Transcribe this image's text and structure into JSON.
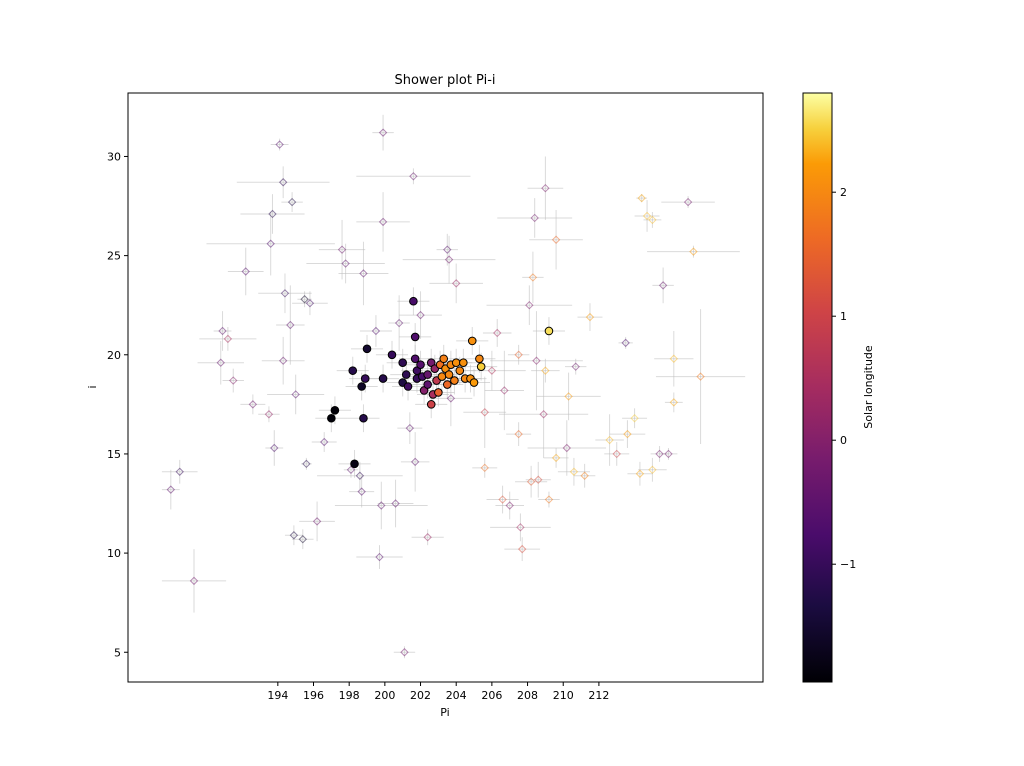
{
  "chart_data": {
    "type": "scatter",
    "title": "Shower plot Pi-i",
    "xlabel": "Pi",
    "ylabel": "i",
    "xlim": [
      185.6,
      221.2
    ],
    "ylim": [
      3.5,
      33.2
    ],
    "xticks": [
      194,
      196,
      198,
      200,
      202,
      204,
      206,
      208,
      210,
      212
    ],
    "yticks": [
      5,
      10,
      15,
      20,
      25,
      30
    ],
    "grid": false,
    "colorbar": {
      "label": "Solar longitude",
      "ticks": [
        -1,
        0,
        1,
        2
      ],
      "tick_labels": [
        "−1",
        "0",
        "1",
        "2"
      ],
      "range": [
        -1.95,
        2.8
      ],
      "colormap": "inferno"
    },
    "faint_series": {
      "name": "",
      "points": [
        {
          "x": 188.5,
          "y": 14.1,
          "s": -1.0,
          "ex": 1.0,
          "ey": 0.6
        },
        {
          "x": 188.0,
          "y": 13.2,
          "s": -0.5,
          "ex": 0.5,
          "ey": 1.0
        },
        {
          "x": 189.3,
          "y": 8.6,
          "s": -0.2,
          "ex": 1.8,
          "ey": 1.6
        },
        {
          "x": 190.9,
          "y": 21.2,
          "s": -0.5,
          "ex": 0.5,
          "ey": 1.0
        },
        {
          "x": 191.2,
          "y": 20.8,
          "s": 0.5,
          "ex": 1.6,
          "ey": 0.6
        },
        {
          "x": 190.8,
          "y": 19.6,
          "s": -0.4,
          "ex": 1.3,
          "ey": 1.1
        },
        {
          "x": 191.5,
          "y": 18.7,
          "s": 0.0,
          "ex": 0.6,
          "ey": 0.6
        },
        {
          "x": 192.2,
          "y": 24.2,
          "s": -0.6,
          "ex": 1.0,
          "ey": 1.2
        },
        {
          "x": 192.6,
          "y": 17.5,
          "s": -0.3,
          "ex": 0.7,
          "ey": 0.5
        },
        {
          "x": 193.5,
          "y": 17.0,
          "s": 0.2,
          "ex": 0.6,
          "ey": 0.4
        },
        {
          "x": 193.8,
          "y": 15.3,
          "s": -0.8,
          "ex": 0.5,
          "ey": 0.9
        },
        {
          "x": 193.6,
          "y": 25.6,
          "s": -0.7,
          "ex": 3.6,
          "ey": 1.6
        },
        {
          "x": 193.7,
          "y": 27.1,
          "s": -1.2,
          "ex": 1.8,
          "ey": 1.0
        },
        {
          "x": 194.1,
          "y": 30.6,
          "s": -0.6,
          "ex": 0.5,
          "ey": 0.3
        },
        {
          "x": 194.3,
          "y": 28.7,
          "s": -1.1,
          "ex": 2.6,
          "ey": 0.8
        },
        {
          "x": 194.4,
          "y": 23.1,
          "s": -1.0,
          "ex": 1.5,
          "ey": 1.0
        },
        {
          "x": 194.3,
          "y": 19.7,
          "s": -0.4,
          "ex": 1.2,
          "ey": 1.2
        },
        {
          "x": 194.7,
          "y": 21.5,
          "s": -0.5,
          "ex": 0.8,
          "ey": 2.0
        },
        {
          "x": 194.8,
          "y": 27.7,
          "s": -1.3,
          "ex": 0.6,
          "ey": 0.5
        },
        {
          "x": 195.0,
          "y": 18.0,
          "s": -0.6,
          "ex": 1.6,
          "ey": 1.0
        },
        {
          "x": 194.9,
          "y": 10.9,
          "s": -1.3,
          "ex": 0.5,
          "ey": 0.5
        },
        {
          "x": 195.4,
          "y": 10.7,
          "s": -1.5,
          "ex": 0.6,
          "ey": 0.5
        },
        {
          "x": 195.6,
          "y": 14.5,
          "s": -1.2,
          "ex": 0.3,
          "ey": 0.3
        },
        {
          "x": 195.5,
          "y": 22.8,
          "s": -1.6,
          "ex": 0.4,
          "ey": 0.4
        },
        {
          "x": 195.8,
          "y": 22.6,
          "s": -0.9,
          "ex": 1.0,
          "ey": 0.6
        },
        {
          "x": 196.2,
          "y": 11.6,
          "s": -0.3,
          "ex": 1.0,
          "ey": 1.0
        },
        {
          "x": 196.6,
          "y": 15.6,
          "s": -0.7,
          "ex": 0.7,
          "ey": 0.5
        },
        {
          "x": 197.6,
          "y": 25.3,
          "s": -0.3,
          "ex": 1.3,
          "ey": 1.5
        },
        {
          "x": 197.8,
          "y": 24.6,
          "s": -0.5,
          "ex": 2.2,
          "ey": 1.0
        },
        {
          "x": 198.1,
          "y": 14.2,
          "s": -0.5,
          "ex": 0.4,
          "ey": 0.4
        },
        {
          "x": 198.6,
          "y": 13.9,
          "s": -1.1,
          "ex": 2.4,
          "ey": 0.7
        },
        {
          "x": 198.7,
          "y": 13.1,
          "s": -0.6,
          "ex": 0.7,
          "ey": 0.8
        },
        {
          "x": 198.8,
          "y": 24.1,
          "s": -0.5,
          "ex": 1.4,
          "ey": 1.6
        },
        {
          "x": 199.5,
          "y": 21.2,
          "s": -0.7,
          "ex": 0.9,
          "ey": 0.8
        },
        {
          "x": 199.8,
          "y": 12.4,
          "s": -0.5,
          "ex": 2.6,
          "ey": 1.2
        },
        {
          "x": 199.7,
          "y": 9.8,
          "s": -0.6,
          "ex": 1.3,
          "ey": 0.6
        },
        {
          "x": 199.9,
          "y": 31.2,
          "s": -0.4,
          "ex": 0.6,
          "ey": 0.9
        },
        {
          "x": 199.9,
          "y": 26.7,
          "s": -0.4,
          "ex": 1.5,
          "ey": 1.5
        },
        {
          "x": 200.6,
          "y": 12.5,
          "s": -0.5,
          "ex": 1.0,
          "ey": 1.2
        },
        {
          "x": 200.8,
          "y": 21.6,
          "s": -0.5,
          "ex": 0.6,
          "ey": 1.4
        },
        {
          "x": 201.1,
          "y": 5.0,
          "s": -0.2,
          "ex": 0.6,
          "ey": 0.3
        },
        {
          "x": 201.4,
          "y": 16.3,
          "s": -0.5,
          "ex": 0.7,
          "ey": 0.8
        },
        {
          "x": 201.6,
          "y": 29.0,
          "s": -0.4,
          "ex": 3.2,
          "ey": 0.4
        },
        {
          "x": 201.7,
          "y": 14.6,
          "s": -0.5,
          "ex": 0.8,
          "ey": 1.5
        },
        {
          "x": 202.4,
          "y": 10.8,
          "s": 0.3,
          "ex": 0.9,
          "ey": 0.4
        },
        {
          "x": 202.0,
          "y": 22.0,
          "s": -0.4,
          "ex": 1.2,
          "ey": 1.2
        },
        {
          "x": 203.5,
          "y": 25.3,
          "s": -0.6,
          "ex": 0.6,
          "ey": 0.8
        },
        {
          "x": 203.6,
          "y": 24.8,
          "s": -0.2,
          "ex": 2.6,
          "ey": 1.2
        },
        {
          "x": 203.7,
          "y": 17.8,
          "s": -0.4,
          "ex": 1.2,
          "ey": 1.4
        },
        {
          "x": 204.0,
          "y": 23.6,
          "s": 0.3,
          "ex": 1.5,
          "ey": 1.0
        },
        {
          "x": 205.6,
          "y": 14.3,
          "s": 1.7,
          "ex": 0.7,
          "ey": 0.5
        },
        {
          "x": 205.6,
          "y": 17.1,
          "s": 0.9,
          "ex": 1.2,
          "ey": 1.8
        },
        {
          "x": 206.0,
          "y": 19.2,
          "s": 0.6,
          "ex": 1.9,
          "ey": 1.0
        },
        {
          "x": 206.3,
          "y": 21.1,
          "s": 0.4,
          "ex": 0.8,
          "ey": 0.7
        },
        {
          "x": 206.6,
          "y": 12.7,
          "s": 1.3,
          "ex": 0.9,
          "ey": 0.7
        },
        {
          "x": 206.7,
          "y": 18.2,
          "s": 0.2,
          "ex": 1.1,
          "ey": 2.0
        },
        {
          "x": 207.0,
          "y": 12.4,
          "s": -0.1,
          "ex": 0.8,
          "ey": 0.7
        },
        {
          "x": 207.5,
          "y": 20.0,
          "s": 1.5,
          "ex": 0.6,
          "ey": 0.5
        },
        {
          "x": 207.5,
          "y": 16.0,
          "s": 1.6,
          "ex": 0.7,
          "ey": 0.6
        },
        {
          "x": 207.6,
          "y": 11.3,
          "s": 0.4,
          "ex": 1.7,
          "ey": 0.7
        },
        {
          "x": 207.7,
          "y": 10.2,
          "s": 1.2,
          "ex": 1.0,
          "ey": 0.6
        },
        {
          "x": 208.1,
          "y": 22.5,
          "s": -0.1,
          "ex": 2.4,
          "ey": 1.0
        },
        {
          "x": 208.2,
          "y": 13.6,
          "s": 1.4,
          "ex": 0.9,
          "ey": 0.8
        },
        {
          "x": 208.4,
          "y": 26.9,
          "s": -0.2,
          "ex": 2.1,
          "ey": 1.0
        },
        {
          "x": 208.3,
          "y": 23.9,
          "s": 1.8,
          "ex": 0.6,
          "ey": 1.3
        },
        {
          "x": 208.5,
          "y": 19.7,
          "s": 0.0,
          "ex": 2.6,
          "ey": 2.5
        },
        {
          "x": 208.6,
          "y": 13.7,
          "s": 1.2,
          "ex": 0.7,
          "ey": 0.9
        },
        {
          "x": 208.9,
          "y": 17.0,
          "s": 0.3,
          "ex": 2.5,
          "ey": 2.2
        },
        {
          "x": 209.0,
          "y": 28.4,
          "s": -0.1,
          "ex": 1.0,
          "ey": 1.6
        },
        {
          "x": 209.0,
          "y": 19.2,
          "s": 2.3,
          "ex": 0.8,
          "ey": 0.6
        },
        {
          "x": 209.2,
          "y": 12.7,
          "s": 1.8,
          "ex": 0.6,
          "ey": 0.4
        },
        {
          "x": 209.6,
          "y": 25.8,
          "s": 1.6,
          "ex": 1.5,
          "ey": 1.5
        },
        {
          "x": 209.6,
          "y": 14.8,
          "s": 2.3,
          "ex": 0.7,
          "ey": 0.5
        },
        {
          "x": 210.2,
          "y": 15.3,
          "s": -0.1,
          "ex": 2.2,
          "ey": 1.4
        },
        {
          "x": 210.3,
          "y": 17.9,
          "s": 2.2,
          "ex": 1.8,
          "ey": 1.2
        },
        {
          "x": 210.6,
          "y": 14.1,
          "s": 2.4,
          "ex": 0.9,
          "ey": 0.7
        },
        {
          "x": 210.7,
          "y": 19.4,
          "s": -0.3,
          "ex": 0.6,
          "ey": 0.4
        },
        {
          "x": 211.2,
          "y": 13.9,
          "s": 1.9,
          "ex": 0.6,
          "ey": 0.6
        },
        {
          "x": 211.5,
          "y": 21.9,
          "s": 2.2,
          "ex": 0.7,
          "ey": 0.7
        },
        {
          "x": 212.6,
          "y": 15.7,
          "s": 2.4,
          "ex": 0.8,
          "ey": 1.3
        },
        {
          "x": 213.0,
          "y": 15.0,
          "s": 1.0,
          "ex": 0.7,
          "ey": 0.6
        },
        {
          "x": 213.5,
          "y": 20.6,
          "s": -0.8,
          "ex": 0.4,
          "ey": 0.3
        },
        {
          "x": 213.6,
          "y": 16.0,
          "s": 2.2,
          "ex": 1.0,
          "ey": 0.7
        },
        {
          "x": 214.0,
          "y": 16.8,
          "s": 2.5,
          "ex": 0.7,
          "ey": 0.5
        },
        {
          "x": 214.3,
          "y": 14.0,
          "s": 2.3,
          "ex": 0.7,
          "ey": 0.6
        },
        {
          "x": 214.4,
          "y": 27.9,
          "s": 2.3,
          "ex": 0.3,
          "ey": 0.2
        },
        {
          "x": 214.7,
          "y": 27.0,
          "s": 2.4,
          "ex": 0.7,
          "ey": 0.8
        },
        {
          "x": 215.0,
          "y": 14.2,
          "s": 2.4,
          "ex": 0.8,
          "ey": 0.6
        },
        {
          "x": 215.4,
          "y": 15.0,
          "s": -0.2,
          "ex": 0.5,
          "ey": 0.4
        },
        {
          "x": 215.6,
          "y": 23.5,
          "s": -0.4,
          "ex": 0.6,
          "ey": 0.9
        },
        {
          "x": 215.9,
          "y": 15.0,
          "s": -0.2,
          "ex": 0.5,
          "ey": 0.3
        },
        {
          "x": 216.2,
          "y": 19.8,
          "s": 2.4,
          "ex": 1.1,
          "ey": 1.4
        },
        {
          "x": 216.2,
          "y": 17.6,
          "s": 2.3,
          "ex": 0.5,
          "ey": 0.5
        },
        {
          "x": 217.0,
          "y": 27.7,
          "s": -0.2,
          "ex": 1.5,
          "ey": 0.3
        },
        {
          "x": 217.3,
          "y": 25.2,
          "s": 2.2,
          "ex": 2.6,
          "ey": 0.3
        },
        {
          "x": 217.7,
          "y": 18.9,
          "s": 1.8,
          "ex": 2.5,
          "ey": 3.4
        },
        {
          "x": 215.0,
          "y": 26.8,
          "s": 2.4,
          "ex": 0.5,
          "ey": 0.4
        }
      ]
    },
    "bold_series": {
      "name": "",
      "points": [
        {
          "x": 197.0,
          "y": 16.8,
          "s": -1.9
        },
        {
          "x": 197.2,
          "y": 17.2,
          "s": -1.9
        },
        {
          "x": 198.3,
          "y": 14.5,
          "s": -1.8
        },
        {
          "x": 198.8,
          "y": 16.8,
          "s": -1.2
        },
        {
          "x": 198.2,
          "y": 19.2,
          "s": -1.2
        },
        {
          "x": 198.7,
          "y": 18.4,
          "s": -1.6
        },
        {
          "x": 198.9,
          "y": 18.8,
          "s": -1.0
        },
        {
          "x": 199.0,
          "y": 20.3,
          "s": -1.5
        },
        {
          "x": 199.9,
          "y": 18.8,
          "s": -1.2
        },
        {
          "x": 200.4,
          "y": 20.0,
          "s": -1.0
        },
        {
          "x": 201.0,
          "y": 19.6,
          "s": -1.1
        },
        {
          "x": 201.0,
          "y": 18.6,
          "s": -1.3
        },
        {
          "x": 201.3,
          "y": 18.4,
          "s": -0.9
        },
        {
          "x": 201.2,
          "y": 19.0,
          "s": -1.1
        },
        {
          "x": 201.6,
          "y": 22.7,
          "s": -0.8
        },
        {
          "x": 201.7,
          "y": 20.9,
          "s": -0.7
        },
        {
          "x": 201.8,
          "y": 19.2,
          "s": -0.9
        },
        {
          "x": 201.7,
          "y": 19.8,
          "s": -0.7
        },
        {
          "x": 201.8,
          "y": 18.8,
          "s": -1.0
        },
        {
          "x": 202.0,
          "y": 19.5,
          "s": -0.6
        },
        {
          "x": 202.1,
          "y": 18.9,
          "s": -0.8
        },
        {
          "x": 202.2,
          "y": 18.2,
          "s": 0.0
        },
        {
          "x": 202.4,
          "y": 19.0,
          "s": -0.4
        },
        {
          "x": 202.6,
          "y": 19.6,
          "s": -0.2
        },
        {
          "x": 202.4,
          "y": 18.5,
          "s": -0.5
        },
        {
          "x": 202.7,
          "y": 18.0,
          "s": 0.5
        },
        {
          "x": 202.8,
          "y": 19.3,
          "s": 0.2
        },
        {
          "x": 202.6,
          "y": 17.5,
          "s": 1.0
        },
        {
          "x": 202.9,
          "y": 18.7,
          "s": 0.8
        },
        {
          "x": 203.1,
          "y": 19.5,
          "s": 1.7
        },
        {
          "x": 203.0,
          "y": 18.1,
          "s": 1.5
        },
        {
          "x": 203.2,
          "y": 18.9,
          "s": 2.0
        },
        {
          "x": 203.3,
          "y": 19.8,
          "s": 1.9
        },
        {
          "x": 203.5,
          "y": 18.5,
          "s": 1.6
        },
        {
          "x": 203.4,
          "y": 19.3,
          "s": 2.1
        },
        {
          "x": 203.6,
          "y": 19.0,
          "s": 2.0
        },
        {
          "x": 203.7,
          "y": 19.5,
          "s": 2.0
        },
        {
          "x": 203.9,
          "y": 18.7,
          "s": 1.9
        },
        {
          "x": 204.0,
          "y": 19.6,
          "s": 2.1
        },
        {
          "x": 204.2,
          "y": 19.2,
          "s": 2.0
        },
        {
          "x": 204.4,
          "y": 19.6,
          "s": 2.1
        },
        {
          "x": 204.5,
          "y": 18.8,
          "s": 2.0
        },
        {
          "x": 204.8,
          "y": 18.8,
          "s": 2.1
        },
        {
          "x": 205.0,
          "y": 18.6,
          "s": 2.2
        },
        {
          "x": 204.9,
          "y": 20.7,
          "s": 2.1
        },
        {
          "x": 205.3,
          "y": 19.8,
          "s": 2.0
        },
        {
          "x": 205.4,
          "y": 19.4,
          "s": 2.5
        },
        {
          "x": 209.2,
          "y": 21.2,
          "s": 2.6
        }
      ]
    }
  }
}
